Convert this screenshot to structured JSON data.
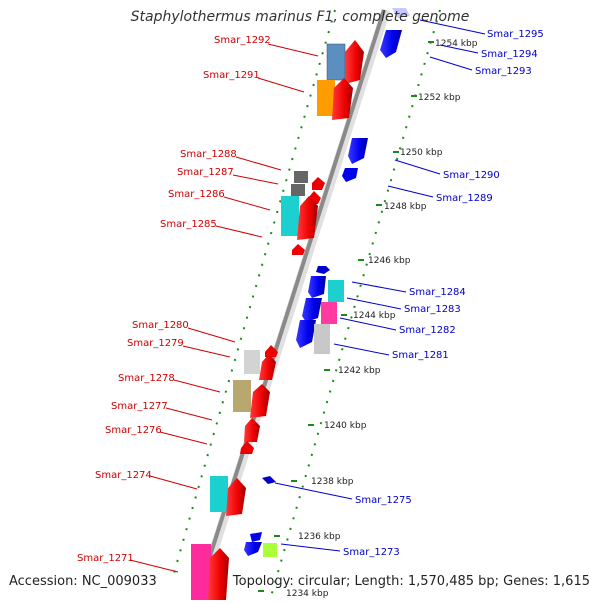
{
  "title": "Staphylothermus marinus F1, complete genome",
  "accession": "Accession: NC_009033",
  "topology": "Topology: circular; Length: 1,570,485 bp; Genes: 1,615",
  "colors": {
    "forward_label": "#d00000",
    "reverse_label": "#0000cc",
    "tick": "#1a8a1a",
    "backbone": "#888888"
  },
  "ticks": [
    "1254 kbp",
    "1252 kbp",
    "1250 kbp",
    "1248 kbp",
    "1246 kbp",
    "1244 kbp",
    "1242 kbp",
    "1240 kbp",
    "1238 kbp",
    "1236 kbp",
    "1234 kbp"
  ],
  "forward_labels": [
    "Smar_1292",
    "Smar_1291",
    "Smar_1288",
    "Smar_1287",
    "Smar_1286",
    "Smar_1285",
    "Smar_1280",
    "Smar_1279",
    "Smar_1278",
    "Smar_1277",
    "Smar_1276",
    "Smar_1274",
    "Smar_1271"
  ],
  "reverse_labels": [
    "Smar_1295",
    "Smar_1294",
    "Smar_1293",
    "Smar_1290",
    "Smar_1289",
    "Smar_1284",
    "Smar_1283",
    "Smar_1282",
    "Smar_1281",
    "Smar_1275",
    "Smar_1273"
  ]
}
